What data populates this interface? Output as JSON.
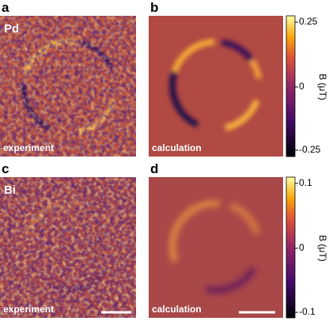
{
  "panels": [
    {
      "letter": "a",
      "element": "Pd",
      "caption": "experiment"
    },
    {
      "letter": "b",
      "caption": "calculation"
    },
    {
      "letter": "c",
      "element": "Bi",
      "caption": "experiment"
    },
    {
      "letter": "d",
      "caption": "calculation"
    }
  ],
  "colorbars": [
    {
      "label": "B (μT)",
      "ticks": [
        "0.25",
        "0",
        "-0.25"
      ]
    },
    {
      "label": "B (μT)",
      "ticks": [
        "0.1",
        "0",
        "-0.1"
      ]
    }
  ]
}
